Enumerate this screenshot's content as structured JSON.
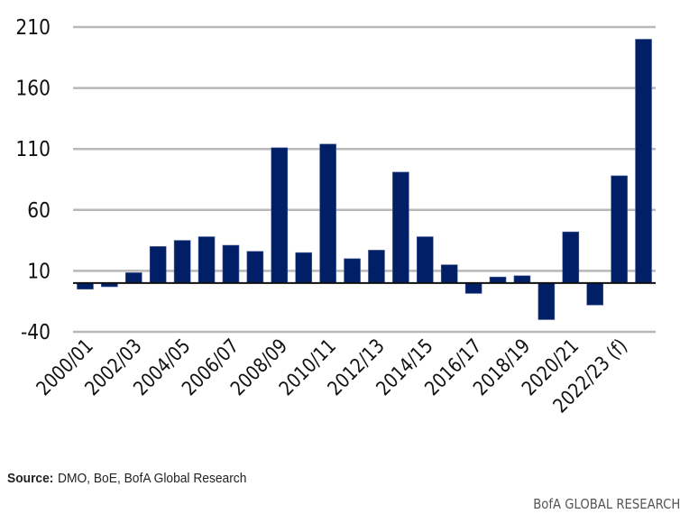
{
  "chart_data": {
    "type": "bar",
    "title": "",
    "xlabel": "",
    "ylabel": "",
    "ylim": [
      -40,
      210
    ],
    "yticks": [
      210,
      160,
      110,
      60,
      10,
      -40
    ],
    "grid": true,
    "legend": "none",
    "bar_color": "#001f66",
    "categories": [
      "2000/01",
      "2001/02",
      "2002/03",
      "2003/04",
      "2004/05",
      "2005/06",
      "2006/07",
      "2007/08",
      "2008/09",
      "2009/10",
      "2010/11",
      "2011/12",
      "2012/13",
      "2013/14",
      "2014/15",
      "2015/16",
      "2016/17",
      "2017/18",
      "2018/19",
      "2019/20",
      "2020/21",
      "2021/22",
      "2022/23 (f)",
      "2023/24"
    ],
    "tick_labels": [
      "2000/01",
      "",
      "2002/03",
      "",
      "2004/05",
      "",
      "2006/07",
      "",
      "2008/09",
      "",
      "2010/11",
      "",
      "2012/13",
      "",
      "2014/15",
      "",
      "2016/17",
      "",
      "2018/19",
      "",
      "2020/21",
      "",
      "2022/23 (f)",
      ""
    ],
    "values": [
      -5,
      -3,
      8.5,
      30,
      35,
      38,
      31,
      26,
      111,
      25,
      114,
      20,
      27,
      91,
      38,
      15,
      -8.5,
      5,
      6,
      -30,
      42,
      -18,
      88,
      200
    ]
  },
  "footer": {
    "source_label": "Source:",
    "source_text": "DMO, BoE, BofA Global Research",
    "brand": "BofA GLOBAL RESEARCH"
  }
}
